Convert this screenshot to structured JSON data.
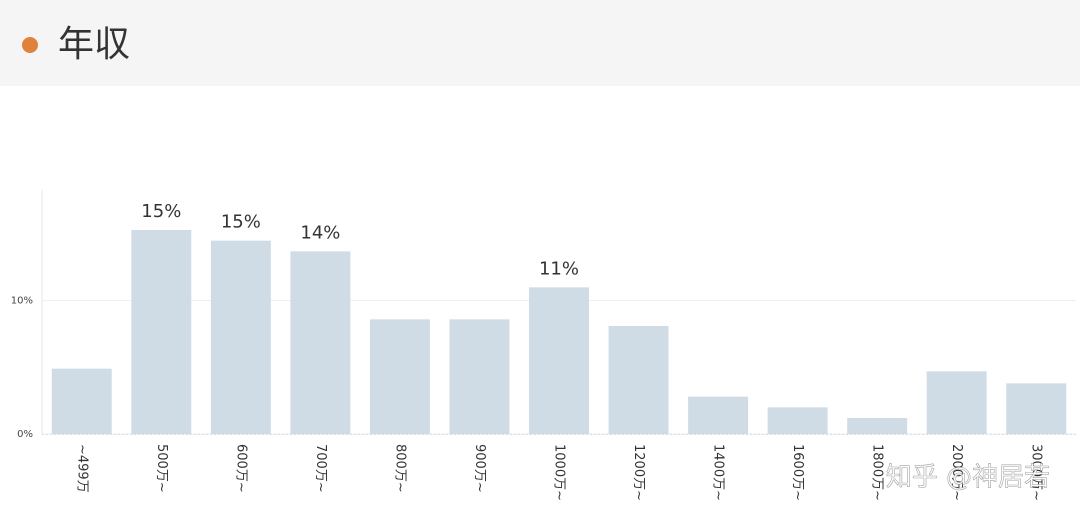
{
  "header": {
    "title": "年収"
  },
  "chart_data": {
    "type": "bar",
    "categories": [
      "~499万",
      "500万~",
      "600万~",
      "700万~",
      "800万~",
      "900万~",
      "1000万~",
      "1200万~",
      "1400万~",
      "1600万~",
      "1800万~",
      "2000万~",
      "3000万~"
    ],
    "values": [
      4.9,
      15.3,
      14.5,
      13.7,
      8.6,
      8.6,
      11.0,
      8.1,
      2.8,
      2.0,
      1.2,
      4.7,
      3.8
    ],
    "value_labels": [
      null,
      "15%",
      "15%",
      "14%",
      null,
      null,
      "11%",
      null,
      null,
      null,
      null,
      null,
      null
    ],
    "color": "#d0dce5",
    "ylim": [
      0,
      18
    ],
    "yticks": [
      {
        "value": 0,
        "label": "0%"
      },
      {
        "value": 10,
        "label": "10%"
      }
    ],
    "grid": true
  },
  "watermark": "知乎 @神居若"
}
